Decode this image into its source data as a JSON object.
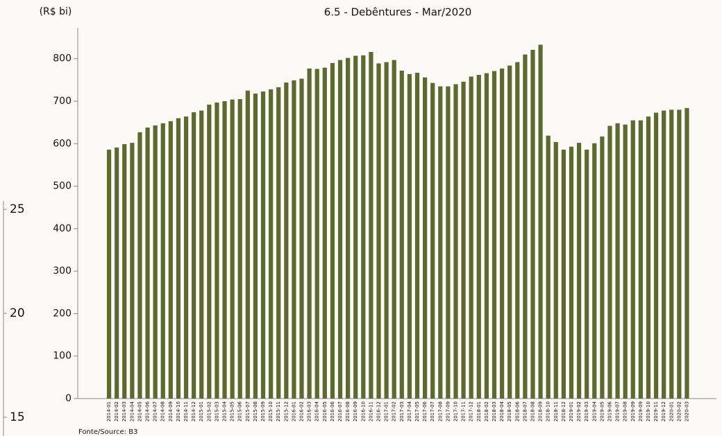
{
  "chart_data": {
    "type": "bar",
    "title": "6.5 - Debêntures - Mar/2020",
    "y_unit_label": "(R$ bi)",
    "source": "Fonte/Source: B3",
    "categories": [
      "2014-01",
      "2014-02",
      "2014-03",
      "2014-04",
      "2014-05",
      "2014-06",
      "2014-07",
      "2014-08",
      "2014-09",
      "2014-10",
      "2014-11",
      "2014-12",
      "2015-01",
      "2015-02",
      "2015-03",
      "2015-04",
      "2015-05",
      "2015-06",
      "2015-07",
      "2015-08",
      "2015-09",
      "2015-10",
      "2015-11",
      "2015-12",
      "2016-01",
      "2016-02",
      "2016-03",
      "2016-04",
      "2016-05",
      "2016-06",
      "2016-07",
      "2016-08",
      "2016-09",
      "2016-10",
      "2016-11",
      "2016-12",
      "2017-01",
      "2017-02",
      "2017-03",
      "2017-04",
      "2017-05",
      "2017-06",
      "2017-07",
      "2017-08",
      "2017-09",
      "2017-10",
      "2017-11",
      "2017-12",
      "2018-01",
      "2018-02",
      "2018-03",
      "2018-04",
      "2018-05",
      "2018-06",
      "2018-07",
      "2018-08",
      "2018-09",
      "2018-10",
      "2018-11",
      "2018-12",
      "2019-01",
      "2019-02",
      "2019-03",
      "2019-04",
      "2019-05",
      "2019-06",
      "2019-07",
      "2019-08",
      "2019-09",
      "2019-09",
      "2019-10",
      "2019-11",
      "2019-12",
      "2020-01",
      "2020-02",
      "2020-03"
    ],
    "values": [
      586,
      591,
      599,
      602,
      627,
      638,
      643,
      648,
      653,
      660,
      664,
      674,
      678,
      692,
      697,
      700,
      704,
      705,
      725,
      718,
      723,
      728,
      733,
      744,
      749,
      753,
      777,
      776,
      779,
      790,
      797,
      802,
      807,
      808,
      816,
      789,
      792,
      797,
      772,
      764,
      767,
      756,
      743,
      735,
      735,
      740,
      746,
      758,
      762,
      766,
      771,
      777,
      784,
      792,
      810,
      821,
      833,
      619,
      604,
      586,
      593,
      602,
      586,
      601,
      617,
      642,
      648,
      645,
      655,
      655,
      664,
      673,
      678,
      680,
      680,
      684
    ],
    "color": "#5b6b2f",
    "ylim": [
      0,
      873
    ],
    "yticks": [
      0,
      100,
      200,
      300,
      400,
      500,
      600,
      700,
      800
    ],
    "y2lim": [
      14.1,
      25.4
    ],
    "y2ticks": [
      15,
      20,
      25
    ]
  }
}
